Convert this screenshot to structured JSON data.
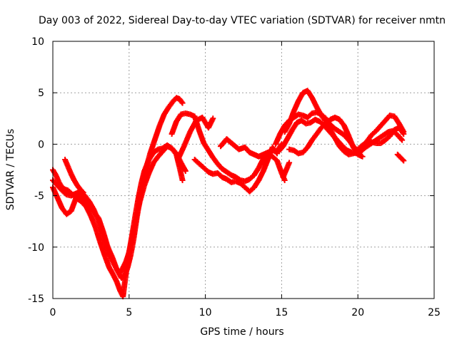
{
  "chart_data": {
    "type": "scatter",
    "title": "Day 003 of 2022, Sidereal Day-to-day VTEC variation (SDTVAR) for receiver nmtn",
    "xlabel": "GPS time / hours",
    "ylabel": "SDTVAR / TECUs",
    "xlim": [
      0,
      25
    ],
    "ylim": [
      -15,
      10
    ],
    "xticks": [
      0,
      5,
      10,
      15,
      20,
      25
    ],
    "yticks": [
      -15,
      -10,
      -5,
      0,
      5,
      10
    ],
    "grid": true,
    "marker": "+",
    "color": "#ff0000",
    "series": [
      {
        "x": [
          0.0,
          0.3,
          0.6,
          0.9,
          1.2,
          1.5,
          1.8,
          2.1,
          2.4,
          2.7,
          3.0,
          3.3,
          3.6,
          3.9,
          4.2,
          4.5,
          4.7,
          4.9,
          5.1,
          5.3,
          5.5,
          5.7,
          5.9,
          6.1,
          6.4,
          6.7,
          7.0,
          7.3,
          7.6,
          7.9,
          8.1,
          8.3,
          8.5
        ],
        "y": [
          -4.2,
          -5.2,
          -6.2,
          -6.8,
          -6.5,
          -5.3,
          -5.0,
          -5.4,
          -6.0,
          -6.6,
          -7.2,
          -8.5,
          -10.0,
          -11.0,
          -12.2,
          -13.0,
          -12.8,
          -12.0,
          -10.8,
          -9.2,
          -7.2,
          -5.4,
          -3.8,
          -2.4,
          -0.8,
          0.5,
          1.8,
          2.9,
          3.6,
          4.2,
          4.5,
          4.4,
          4.0
        ]
      },
      {
        "x": [
          0.0,
          0.3,
          0.6,
          0.9,
          1.2,
          1.5,
          1.8,
          2.1,
          2.4,
          2.7,
          3.0,
          3.3,
          3.6,
          3.9,
          4.2,
          4.4,
          4.6,
          4.8,
          5.0,
          5.2,
          5.4,
          5.7,
          6.0,
          6.3,
          6.6,
          6.9,
          7.2,
          7.5,
          7.8,
          8.1,
          8.3,
          8.5
        ],
        "y": [
          -3.5,
          -4.0,
          -4.5,
          -4.9,
          -5.0,
          -4.8,
          -4.6,
          -5.0,
          -5.6,
          -6.4,
          -7.5,
          -9.0,
          -10.3,
          -11.3,
          -12.2,
          -12.5,
          -12.0,
          -11.4,
          -10.5,
          -9.2,
          -7.6,
          -5.6,
          -4.0,
          -2.8,
          -1.8,
          -1.2,
          -0.7,
          -0.2,
          -0.4,
          -1.0,
          -2.2,
          -3.5
        ]
      },
      {
        "x": [
          0.0,
          0.2,
          0.4,
          0.6,
          0.8,
          1.0,
          1.3,
          1.6,
          1.9,
          2.2,
          2.5,
          2.8,
          3.1,
          3.4,
          3.7,
          4.0,
          4.2,
          4.4,
          4.6,
          4.8,
          5.0,
          5.2,
          5.4,
          5.6,
          5.8,
          6.0,
          6.3,
          6.6,
          6.9,
          7.2,
          7.5,
          7.8,
          8.1,
          8.4,
          8.7
        ],
        "y": [
          -2.5,
          -3.0,
          -3.7,
          -4.2,
          -4.4,
          -4.5,
          -4.9,
          -5.3,
          -5.6,
          -6.1,
          -7.0,
          -8.1,
          -9.5,
          -10.8,
          -12.0,
          -12.8,
          -13.4,
          -14.2,
          -14.8,
          -12.5,
          -10.5,
          -8.8,
          -7.0,
          -5.3,
          -3.8,
          -2.6,
          -1.5,
          -0.8,
          -0.5,
          -0.4,
          -0.1,
          -0.4,
          -0.9,
          -1.8,
          -2.6
        ]
      },
      {
        "x": [
          0.8,
          1.0,
          1.2,
          1.4,
          1.6,
          1.8,
          2.0
        ],
        "y": [
          -1.5,
          -2.2,
          -2.9,
          -3.5,
          -4.0,
          -4.4,
          -4.7
        ]
      },
      {
        "x": [
          7.8,
          8.1,
          8.4,
          8.7,
          9.0,
          9.3,
          9.6,
          9.9,
          10.2,
          10.5,
          10.8,
          11.1,
          11.4,
          11.7,
          12.0,
          12.3,
          12.6,
          12.9,
          13.2,
          13.5,
          13.8,
          14.1,
          14.4,
          14.7,
          15.0,
          15.2
        ],
        "y": [
          1.0,
          2.2,
          2.9,
          3.0,
          2.9,
          2.7,
          1.3,
          0.1,
          -0.6,
          -1.3,
          -1.9,
          -2.4,
          -2.7,
          -3.0,
          -3.2,
          -3.5,
          -3.6,
          -3.4,
          -3.0,
          -2.3,
          -1.4,
          -0.9,
          -1.2,
          -1.6,
          -2.8,
          -3.5
        ]
      },
      {
        "x": [
          8.2,
          8.6,
          9.0,
          9.4,
          9.8,
          10.2,
          10.5
        ],
        "y": [
          -1.5,
          -0.2,
          1.2,
          2.3,
          2.6,
          1.6,
          2.5
        ]
      },
      {
        "x": [
          9.3,
          9.6,
          9.9,
          10.2,
          10.5,
          10.8,
          11.1,
          11.4,
          11.7,
          12.0,
          12.3,
          12.6,
          12.9,
          13.2,
          13.5,
          13.8,
          14.1,
          14.4,
          14.7
        ],
        "y": [
          -1.5,
          -1.9,
          -2.3,
          -2.7,
          -2.9,
          -2.8,
          -3.2,
          -3.4,
          -3.7,
          -3.6,
          -3.8,
          -4.2,
          -4.6,
          -4.2,
          -3.5,
          -2.6,
          -1.5,
          -0.3,
          -0.9
        ]
      },
      {
        "x": [
          11.0,
          11.4,
          11.8,
          12.2,
          12.6,
          12.9,
          13.2,
          13.5,
          13.8,
          14.1,
          14.4,
          14.7,
          15.0
        ],
        "y": [
          -0.2,
          0.5,
          0.0,
          -0.5,
          -0.3,
          -0.8,
          -1.0,
          -1.2,
          -1.0,
          -0.8,
          -0.6,
          -0.7,
          0.0
        ]
      },
      {
        "x": [
          14.6,
          14.9,
          15.2,
          15.5,
          15.8,
          16.1,
          16.4,
          16.7,
          17.0,
          17.3,
          17.6,
          17.9,
          18.2,
          18.5,
          18.8,
          19.1,
          19.4,
          19.7,
          20.0,
          20.3,
          20.6,
          20.9,
          21.2,
          21.5,
          21.8,
          22.1,
          22.4,
          22.7,
          23.0
        ],
        "y": [
          0.0,
          1.0,
          1.8,
          2.3,
          2.6,
          2.9,
          2.8,
          2.6,
          3.0,
          3.1,
          2.9,
          2.5,
          1.9,
          1.5,
          1.2,
          0.9,
          0.4,
          -0.2,
          -0.7,
          -0.2,
          0.3,
          0.9,
          1.3,
          1.8,
          2.3,
          2.8,
          2.7,
          2.0,
          1.2
        ]
      },
      {
        "x": [
          14.8,
          15.1,
          15.4,
          15.7,
          16.0,
          16.3,
          16.6,
          16.9,
          17.2,
          17.5,
          17.8,
          18.1,
          18.4,
          18.7,
          19.0,
          19.3,
          19.6,
          19.9,
          20.2,
          20.5,
          20.8,
          21.1,
          21.4,
          21.7,
          22.0,
          22.3,
          22.6,
          22.9
        ],
        "y": [
          -0.7,
          -0.2,
          0.6,
          1.4,
          2.1,
          2.3,
          2.0,
          2.1,
          2.4,
          2.2,
          1.8,
          1.3,
          0.8,
          0.3,
          -0.2,
          -0.6,
          -0.8,
          -0.9,
          -0.7,
          -0.3,
          0.0,
          0.3,
          0.6,
          0.9,
          1.2,
          1.3,
          0.9,
          0.4
        ]
      },
      {
        "x": [
          15.2,
          15.5,
          15.8,
          16.1,
          16.4,
          16.7,
          17.0,
          17.3,
          17.6,
          17.9,
          18.2,
          18.5,
          18.8,
          19.1,
          19.4,
          19.7,
          20.0,
          20.3,
          20.6,
          20.9,
          21.2,
          21.5,
          21.8,
          22.1,
          22.4,
          22.7,
          23.0
        ],
        "y": [
          1.2,
          2.0,
          3.2,
          4.2,
          5.0,
          5.2,
          4.5,
          3.6,
          2.8,
          2.2,
          1.4,
          0.6,
          -0.2,
          -0.7,
          -1.0,
          -0.9,
          -0.5,
          -0.1,
          0.1,
          0.2,
          0.1,
          0.1,
          0.4,
          0.8,
          1.4,
          1.6,
          1.0
        ]
      },
      {
        "x": [
          15.5,
          15.8,
          16.1,
          16.4,
          16.7,
          17.0,
          17.3,
          17.6,
          17.9,
          18.2,
          18.5,
          18.8,
          19.1,
          19.4,
          19.7,
          20.0,
          20.3
        ],
        "y": [
          -0.5,
          -0.6,
          -0.9,
          -0.8,
          -0.3,
          0.4,
          1.0,
          1.6,
          2.0,
          2.4,
          2.6,
          2.4,
          1.8,
          0.8,
          -0.3,
          -1.0,
          -1.2
        ]
      },
      {
        "x": [
          15.1,
          15.3,
          15.5
        ],
        "y": [
          -3.2,
          -2.5,
          -1.8
        ]
      },
      {
        "x": [
          22.6,
          22.8,
          23.0
        ],
        "y": [
          -1.0,
          -1.3,
          -1.6
        ]
      }
    ]
  }
}
